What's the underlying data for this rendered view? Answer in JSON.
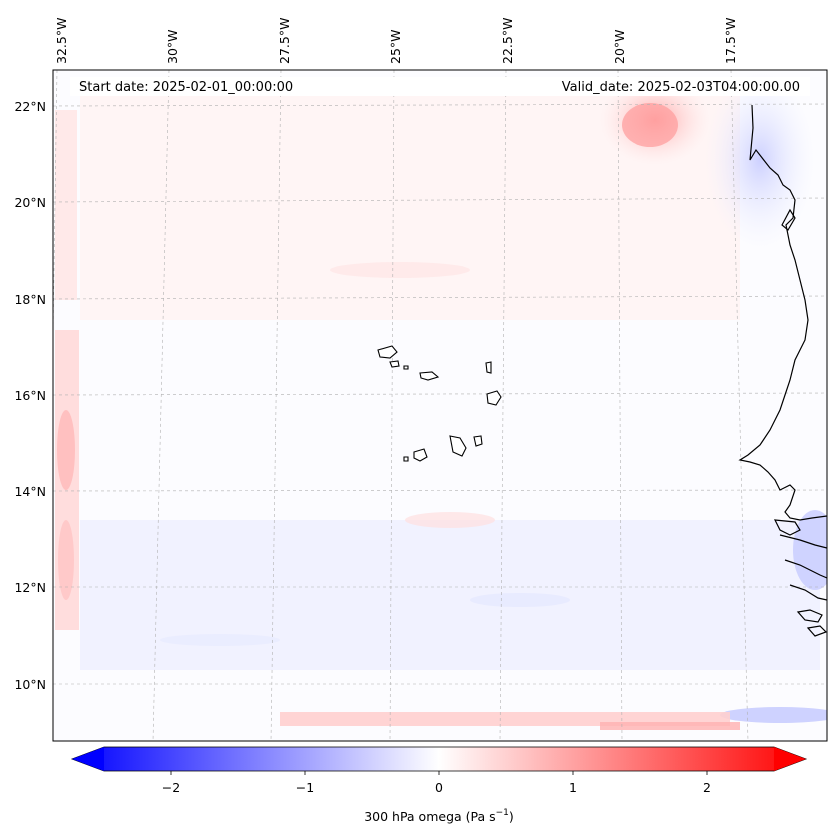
{
  "header": {
    "start_date": "Start date: 2025-02-01_00:00:00",
    "valid_date": "Valid_date: 2025-02-03T04:00:00.00"
  },
  "longitude_ticks": [
    "32.5°W",
    "30°W",
    "27.5°W",
    "25°W",
    "22.5°W",
    "20°W",
    "17.5°W"
  ],
  "latitude_ticks": [
    "22°N",
    "20°N",
    "18°N",
    "16°N",
    "14°N",
    "12°N",
    "10°N"
  ],
  "colorbar": {
    "label_main": "300 hPa omega (Pa s",
    "label_exp": "−1",
    "label_close": ")",
    "ticks": [
      "−2",
      "−1",
      "0",
      "1",
      "2"
    ],
    "tick_values": [
      -2,
      -1,
      0,
      1,
      2
    ],
    "range": [
      -2.5,
      2.5
    ],
    "colors": {
      "min": "#0000ff",
      "mid": "#ffffff",
      "max": "#ff0000"
    }
  },
  "colors": {
    "coastline": "#000000",
    "gridline": "#b0b0b0",
    "frame": "#000000"
  }
}
